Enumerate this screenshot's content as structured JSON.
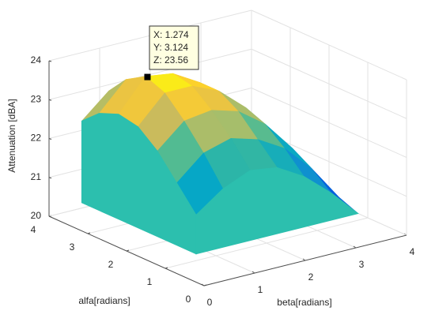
{
  "chart_data": {
    "type": "surface",
    "xlabel": "beta[radians]",
    "ylabel": "alfa[radians]",
    "zlabel": "Attenuation [dBA]",
    "x": [
      0.8,
      1.33,
      1.87,
      2.4,
      2.93,
      3.47,
      4.0
    ],
    "y": [
      1.25,
      1.75,
      2.25,
      2.75,
      3.25,
      3.75,
      4.2
    ],
    "z": [
      [
        21.0,
        21.5,
        21.8,
        21.7,
        21.3,
        20.7,
        20.0
      ],
      [
        21.6,
        22.2,
        22.4,
        22.2,
        21.8,
        21.1,
        20.2
      ],
      [
        22.2,
        22.8,
        22.9,
        22.7,
        22.2,
        21.4,
        20.4
      ],
      [
        22.6,
        23.3,
        23.3,
        23.0,
        22.4,
        21.6,
        20.5
      ],
      [
        22.7,
        23.5,
        23.4,
        23.0,
        22.4,
        21.5,
        20.4
      ],
      [
        22.5,
        23.2,
        23.1,
        22.7,
        22.1,
        21.2,
        20.2
      ],
      [
        22.1,
        22.7,
        22.7,
        22.3,
        21.8,
        20.9,
        20.0
      ]
    ],
    "xlim": [
      0,
      4
    ],
    "ylim": [
      0,
      4
    ],
    "zlim": [
      20,
      24
    ],
    "xticks": [
      0,
      1,
      2,
      3,
      4
    ],
    "yticks": [
      0,
      1,
      2,
      3,
      4
    ],
    "zticks": [
      20,
      21,
      22,
      23,
      24
    ],
    "grid": true,
    "colormap": "parula",
    "wall_color": "#2cbfae",
    "datatip": {
      "values": [
        1.274,
        3.124,
        23.56
      ],
      "value_labels": [
        "X: 1.274",
        "Y: 3.124",
        "Z: 23.56"
      ]
    }
  }
}
